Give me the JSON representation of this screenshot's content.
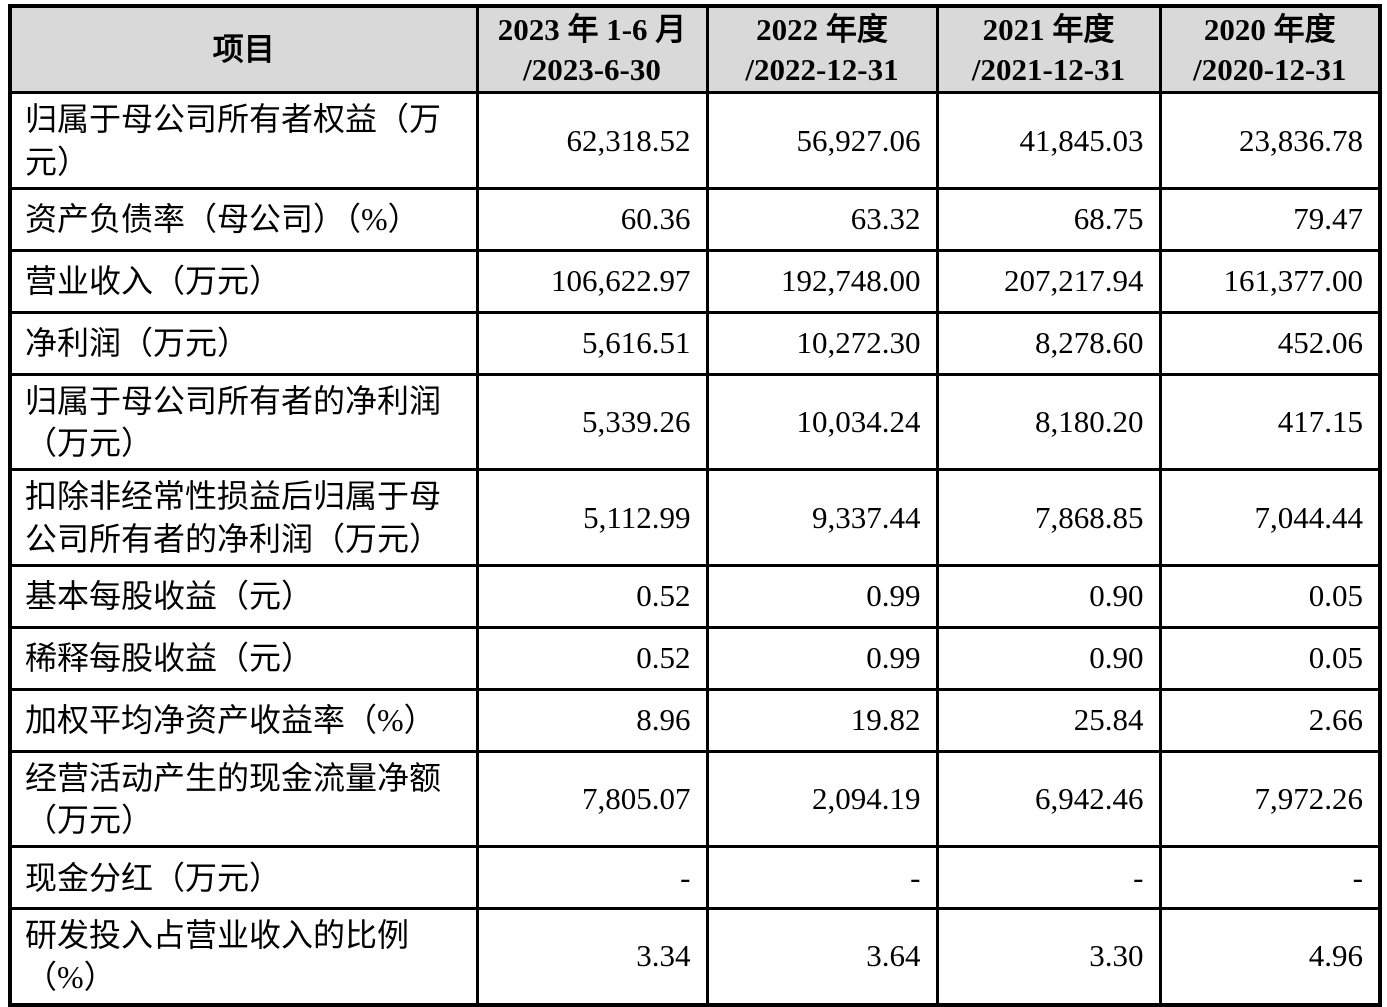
{
  "table": {
    "title": "key-financials-table",
    "colors": {
      "header_bg": "#d9d9d9",
      "border": "#000000",
      "text": "#000000",
      "background": "#ffffff"
    },
    "header": {
      "item_label": "项目",
      "periods": [
        {
          "line1": "2023 年 1-6 月",
          "line2": "/2023-6-30"
        },
        {
          "line1": "2022 年度",
          "line2": "/2022-12-31"
        },
        {
          "line1": "2021 年度",
          "line2": "/2021-12-31"
        },
        {
          "line1": "2020 年度",
          "line2": "/2020-12-31"
        }
      ]
    },
    "rows": [
      {
        "label": "归属于母公司所有者权益（万元）",
        "values": [
          "62,318.52",
          "56,927.06",
          "41,845.03",
          "23,836.78"
        ]
      },
      {
        "label": "资产负债率（母公司）（%）",
        "values": [
          "60.36",
          "63.32",
          "68.75",
          "79.47"
        ]
      },
      {
        "label": "营业收入（万元）",
        "values": [
          "106,622.97",
          "192,748.00",
          "207,217.94",
          "161,377.00"
        ]
      },
      {
        "label": "净利润（万元）",
        "values": [
          "5,616.51",
          "10,272.30",
          "8,278.60",
          "452.06"
        ]
      },
      {
        "label": "归属于母公司所有者的净利润（万元）",
        "values": [
          "5,339.26",
          "10,034.24",
          "8,180.20",
          "417.15"
        ]
      },
      {
        "label": "扣除非经常性损益后归属于母公司所有者的净利润（万元）",
        "values": [
          "5,112.99",
          "9,337.44",
          "7,868.85",
          "7,044.44"
        ]
      },
      {
        "label": "基本每股收益（元）",
        "values": [
          "0.52",
          "0.99",
          "0.90",
          "0.05"
        ]
      },
      {
        "label": "稀释每股收益（元）",
        "values": [
          "0.52",
          "0.99",
          "0.90",
          "0.05"
        ]
      },
      {
        "label": "加权平均净资产收益率（%）",
        "values": [
          "8.96",
          "19.82",
          "25.84",
          "2.66"
        ]
      },
      {
        "label": "经营活动产生的现金流量净额（万元）",
        "values": [
          "7,805.07",
          "2,094.19",
          "6,942.46",
          "7,972.26"
        ]
      },
      {
        "label": "现金分红（万元）",
        "values": [
          "-",
          "-",
          "-",
          "-"
        ]
      },
      {
        "label": "研发投入占营业收入的比例（%）",
        "values": [
          "3.34",
          "3.64",
          "3.30",
          "4.96"
        ]
      }
    ]
  }
}
